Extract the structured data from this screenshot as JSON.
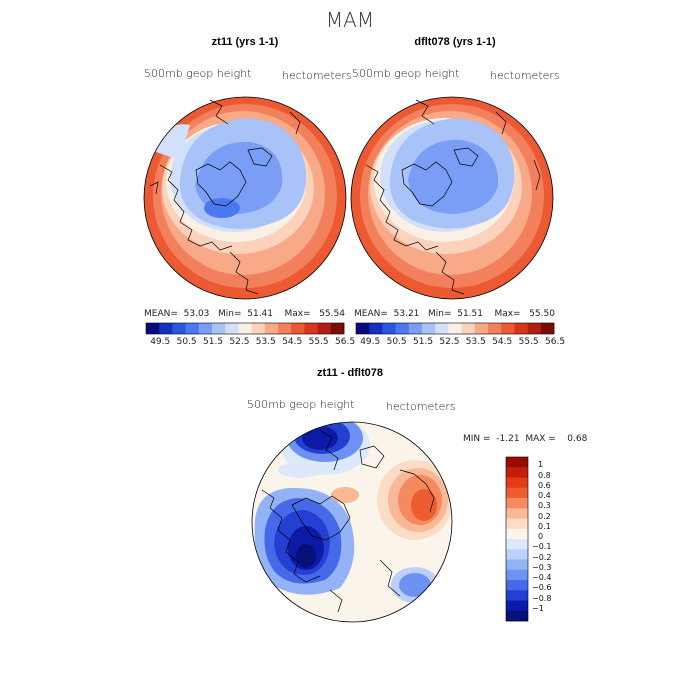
{
  "figure": {
    "title": "MAM"
  },
  "panels": [
    {
      "title": "zt11 (yrs 1-1)",
      "field_label": "500mb geop height",
      "units": "hectometers",
      "stats": {
        "mean_label": "MEAN=",
        "mean": "53.03",
        "min_label": "Min=",
        "min": "51.41",
        "max_label": "Max=",
        "max": "55.54"
      }
    },
    {
      "title": "dflt078 (yrs 1-1)",
      "field_label": "500mb geop height",
      "units": "hectometers",
      "stats": {
        "mean_label": "MEAN=",
        "mean": "53.21",
        "min_label": "Min=",
        "min": "51.51",
        "max_label": "Max=",
        "max": "55.50"
      }
    }
  ],
  "diff_panel": {
    "title": "zt11 - dflt078",
    "field_label": "500mb geop height",
    "units": "hectometers",
    "stats": {
      "min_label": "MIN =",
      "min": "-1.21",
      "max_label": "MAX =",
      "max": "0.68"
    }
  },
  "colorbar_top": {
    "ticks": [
      "49.5",
      "50.5",
      "51.5",
      "52.5",
      "53.5",
      "54.5",
      "55.5",
      "56.5"
    ],
    "colors": [
      "#0a0a80",
      "#1530c0",
      "#2a55e0",
      "#4a78ee",
      "#7a9ef5",
      "#a9c2f8",
      "#d3e0fb",
      "#fbf0e4",
      "#fcd2bd",
      "#f8a987",
      "#f2805c",
      "#eb5a32",
      "#d8351a",
      "#b01f0f",
      "#7d0c07"
    ]
  },
  "colorbar_diff": {
    "levels": [
      "1",
      "0.8",
      "0.6",
      "0.4",
      "0.3",
      "0.2",
      "0.1",
      "0",
      "−0.1",
      "−0.2",
      "−0.3",
      "−0.4",
      "−0.6",
      "−0.8",
      "−1"
    ],
    "colors": [
      "#990a05",
      "#c41e0c",
      "#e03c19",
      "#ee5d31",
      "#f58a5f",
      "#f9b896",
      "#fbdcc6",
      "#fbf4ea",
      "#dde8fb",
      "#bcd0f9",
      "#94b2f6",
      "#6d92f2",
      "#4669ea",
      "#2340d2",
      "#0c1aa6",
      "#06107a"
    ]
  }
}
